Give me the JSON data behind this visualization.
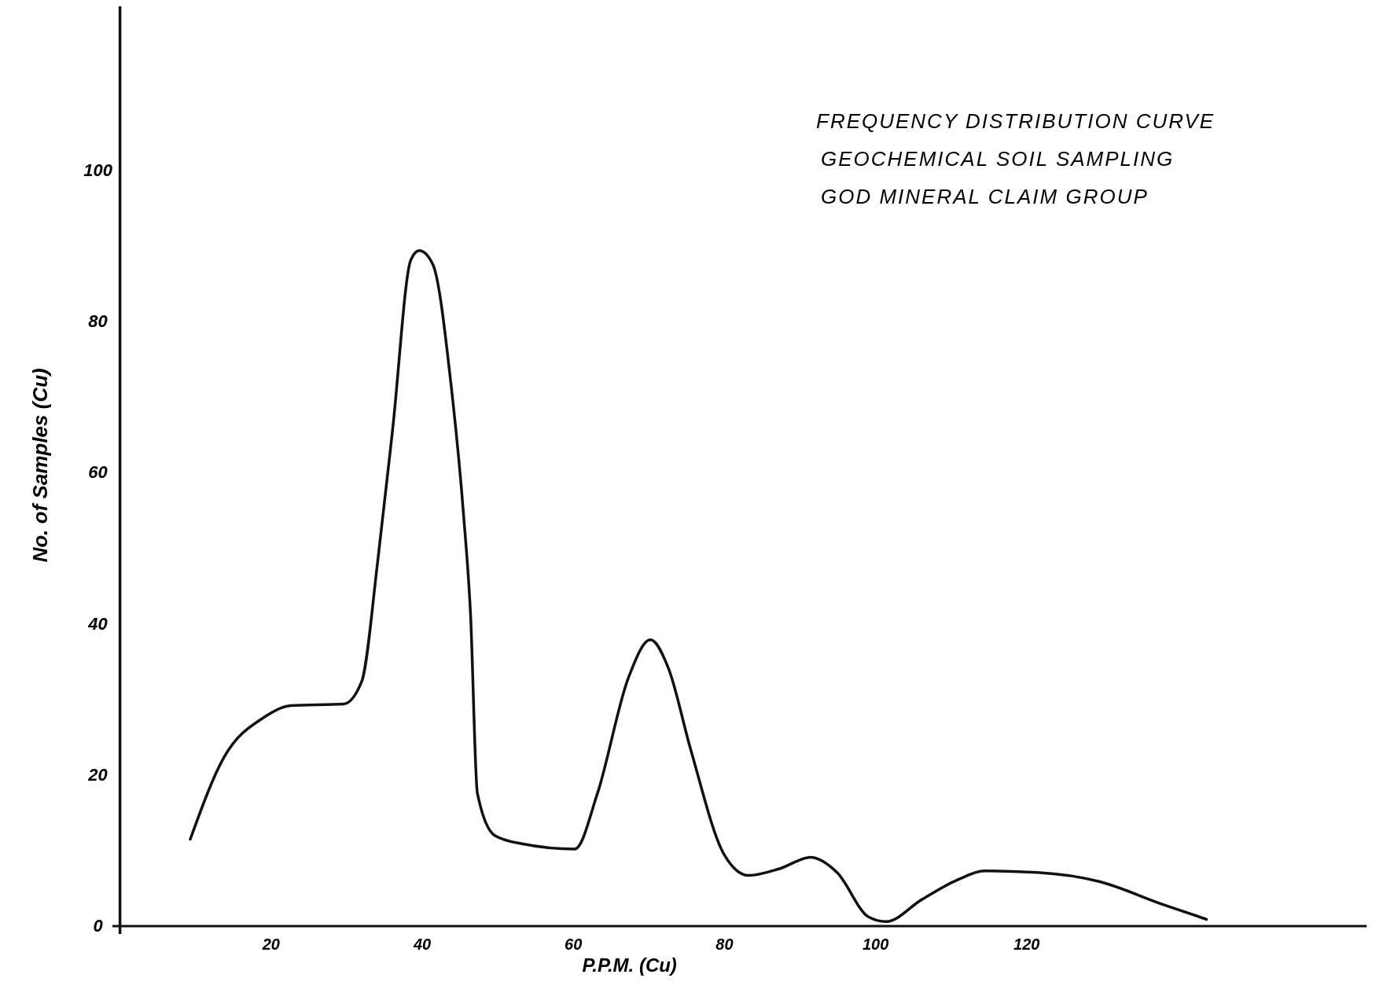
{
  "chart_data": {
    "type": "line",
    "title": "FREQUENCY DISTRIBUTION CURVE",
    "subtitle": "GEOCHEMICAL SOIL SAMPLING\nGOD MINERAL CLAIM GROUP",
    "xlabel": "P.P.M. (Cu)",
    "ylabel": "No. of Samples (Cu)",
    "xlim": [
      -1,
      165
    ],
    "ylim": [
      0,
      122
    ],
    "xticks": [
      20,
      40,
      60,
      80,
      100,
      120
    ],
    "yticks": [
      0,
      20,
      40,
      60,
      80,
      100
    ],
    "grid": false,
    "marker": "none",
    "line_style": "solid",
    "series": [
      {
        "color": "#111111",
        "x": [
          9.3,
          13.8,
          19,
          22.6,
          29.6,
          32,
          34.1,
          36.1,
          38.5,
          39.6,
          41.4,
          43.8,
          45.5,
          46.4,
          47.3,
          49.6,
          53.2,
          60.2,
          63.2,
          67.3,
          70.2,
          72.6,
          75.5,
          80,
          83.2,
          87.3,
          91.4,
          94.9,
          99.1,
          101.4,
          106.1,
          110.8,
          114.4,
          121.4,
          129.6,
          137.9,
          143.8
        ],
        "values": [
          11.5,
          22.4,
          27.6,
          29.2,
          29.4,
          32.4,
          48.2,
          65.9,
          88.2,
          89.4,
          87.6,
          71.8,
          54.1,
          41.2,
          17.6,
          12,
          10.9,
          10.2,
          17.6,
          32.9,
          37.9,
          34.1,
          23.5,
          9.4,
          6.7,
          7.6,
          9.1,
          7.1,
          1.2,
          0.6,
          3.5,
          6.1,
          7.3,
          7.1,
          5.9,
          2.9,
          0.9
        ]
      }
    ]
  }
}
